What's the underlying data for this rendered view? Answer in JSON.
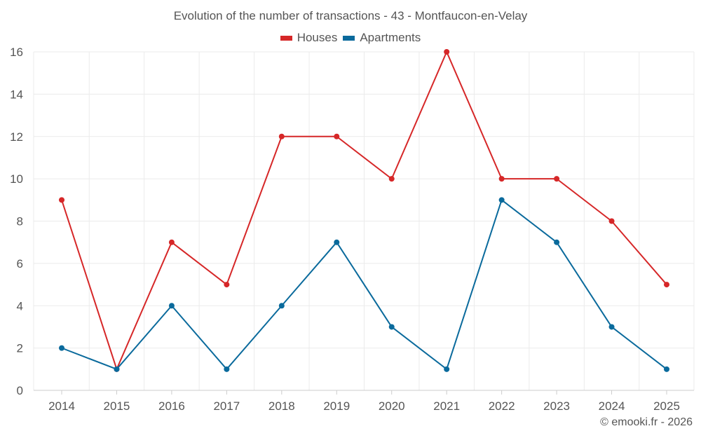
{
  "chart_data": {
    "type": "line",
    "title": "Evolution of the number of transactions - 43 - Montfaucon-en-Velay",
    "categories": [
      "2014",
      "2015",
      "2016",
      "2017",
      "2018",
      "2019",
      "2020",
      "2021",
      "2022",
      "2023",
      "2024",
      "2025"
    ],
    "series": [
      {
        "name": "Houses",
        "color": "#d62728",
        "values": [
          9,
          1,
          7,
          5,
          12,
          12,
          10,
          16,
          10,
          10,
          8,
          5
        ]
      },
      {
        "name": "Apartments",
        "color": "#0a6a9c",
        "values": [
          2,
          1,
          4,
          1,
          4,
          7,
          3,
          1,
          9,
          7,
          3,
          1
        ]
      }
    ],
    "yticks": [
      "0",
      "2",
      "4",
      "6",
      "8",
      "10",
      "12",
      "14",
      "16"
    ],
    "ylim": [
      0,
      16
    ],
    "xlabel": "",
    "ylabel": "",
    "grid": true,
    "legend_position": "top-center"
  },
  "credit": "© emooki.fr - 2026"
}
